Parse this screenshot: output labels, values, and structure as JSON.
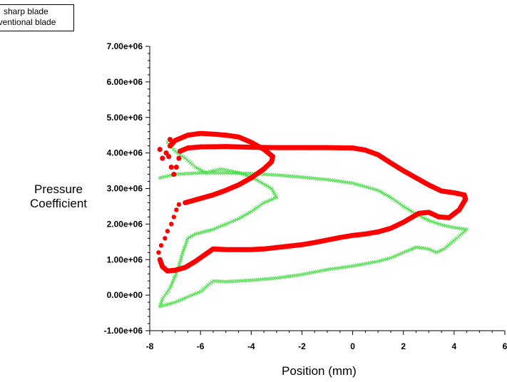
{
  "chart_data": {
    "type": "scatter",
    "title": "",
    "xlabel": "Position (mm)",
    "ylabel_line1": "Pressure",
    "ylabel_line2": "Coefficient",
    "xlim": [
      -8,
      6
    ],
    "ylim": [
      -1000000,
      7000000
    ],
    "x_ticks": [
      -8,
      -6,
      -4,
      -2,
      0,
      2,
      4,
      6
    ],
    "x_tick_labels": [
      "-8",
      "-6",
      "-4",
      "-2",
      "0",
      "2",
      "4",
      "6"
    ],
    "y_ticks": [
      -1000000,
      0,
      1000000,
      2000000,
      3000000,
      4000000,
      5000000,
      6000000,
      7000000
    ],
    "y_tick_labels": [
      "-1.00e+06",
      "0.00e+00",
      "1.00e+06",
      "2.00e+06",
      "3.00e+06",
      "4.00e+06",
      "5.00e+06",
      "6.00e+06",
      "7.00e+06"
    ],
    "grid": false,
    "legend_position": "top-left",
    "legend": [
      "sharp blade",
      "nventional blade"
    ],
    "series": [
      {
        "label_index": 0,
        "color": "#ff0000",
        "marker": "dot",
        "points": [
          [
            -7.6,
            4100000.0
          ],
          [
            -7.5,
            3850000.0
          ],
          [
            -7.35,
            4000000.0
          ],
          [
            -7.2,
            4380000.0
          ],
          [
            -7.25,
            3900000.0
          ],
          [
            -7.15,
            3600000.0
          ],
          [
            -7.05,
            3400000.0
          ],
          [
            -6.95,
            3600000.0
          ],
          [
            -6.85,
            3850000.0
          ],
          [
            -6.8,
            4050000.0
          ],
          [
            -6.5,
            4140000.0
          ],
          [
            -6.0,
            4170000.0
          ],
          [
            -5.0,
            4180000.0
          ],
          [
            -4.0,
            4160000.0
          ],
          [
            -3.0,
            4150000.0
          ],
          [
            -2.0,
            4150000.0
          ],
          [
            -1.0,
            4150000.0
          ],
          [
            0.0,
            4140000.0
          ],
          [
            0.5,
            4080000.0
          ],
          [
            1.0,
            3950000.0
          ],
          [
            1.5,
            3720000.0
          ],
          [
            2.0,
            3500000.0
          ],
          [
            2.5,
            3300000.0
          ],
          [
            3.0,
            3100000.0
          ],
          [
            3.5,
            2930000.0
          ],
          [
            4.0,
            2880000.0
          ],
          [
            4.4,
            2820000.0
          ],
          [
            4.45,
            2700000.0
          ],
          [
            4.2,
            2400000.0
          ],
          [
            3.8,
            2180000.0
          ],
          [
            3.4,
            2200000.0
          ],
          [
            3.0,
            2330000.0
          ],
          [
            2.6,
            2300000.0
          ],
          [
            2.0,
            2050000.0
          ],
          [
            1.5,
            1880000.0
          ],
          [
            1.0,
            1780000.0
          ],
          [
            0.5,
            1720000.0
          ],
          [
            0.0,
            1680000.0
          ],
          [
            -0.5,
            1620000.0
          ],
          [
            -1.0,
            1550000.0
          ],
          [
            -1.5,
            1480000.0
          ],
          [
            -2.0,
            1420000.0
          ],
          [
            -2.5,
            1380000.0
          ],
          [
            -3.0,
            1340000.0
          ],
          [
            -3.5,
            1300000.0
          ],
          [
            -4.0,
            1280000.0
          ],
          [
            -4.5,
            1280000.0
          ],
          [
            -5.0,
            1280000.0
          ],
          [
            -5.5,
            1300000.0
          ],
          [
            -5.8,
            1150000.0
          ],
          [
            -6.2,
            950000.0
          ],
          [
            -6.6,
            780000.0
          ],
          [
            -7.0,
            700000.0
          ],
          [
            -7.3,
            680000.0
          ],
          [
            -7.5,
            800000.0
          ],
          [
            -7.6,
            1000000.0
          ],
          [
            -7.65,
            1200000.0
          ],
          [
            -7.55,
            1400000.0
          ],
          [
            -7.4,
            1600000.0
          ],
          [
            -7.3,
            1800000.0
          ],
          [
            -7.15,
            2000000.0
          ],
          [
            -7.05,
            2200000.0
          ],
          [
            -6.95,
            2400000.0
          ],
          [
            -6.85,
            2550000.0
          ],
          [
            -6.6,
            2600000.0
          ],
          [
            -6.0,
            2720000.0
          ],
          [
            -5.5,
            2820000.0
          ],
          [
            -5.0,
            2950000.0
          ],
          [
            -4.5,
            3100000.0
          ],
          [
            -4.0,
            3300000.0
          ],
          [
            -3.5,
            3550000.0
          ],
          [
            -3.2,
            3750000.0
          ],
          [
            -3.15,
            3900000.0
          ],
          [
            -3.5,
            4100000.0
          ],
          [
            -4.0,
            4300000.0
          ],
          [
            -4.5,
            4450000.0
          ],
          [
            -5.0,
            4500000.0
          ],
          [
            -5.5,
            4530000.0
          ],
          [
            -6.0,
            4550000.0
          ],
          [
            -6.5,
            4500000.0
          ],
          [
            -7.0,
            4350000.0
          ],
          [
            -7.2,
            4200000.0
          ]
        ]
      },
      {
        "label_index": 1,
        "color": "#44dd44",
        "marker": "cross",
        "points": [
          [
            -7.6,
            3300000.0
          ],
          [
            -7.0,
            3400000.0
          ],
          [
            -6.0,
            3440000.0
          ],
          [
            -5.0,
            3440000.0
          ],
          [
            -4.0,
            3420000.0
          ],
          [
            -3.0,
            3380000.0
          ],
          [
            -2.0,
            3320000.0
          ],
          [
            -1.0,
            3250000.0
          ],
          [
            0.0,
            3150000.0
          ],
          [
            1.0,
            2950000.0
          ],
          [
            1.5,
            2750000.0
          ],
          [
            2.0,
            2500000.0
          ],
          [
            2.5,
            2280000.0
          ],
          [
            3.0,
            2100000.0
          ],
          [
            3.5,
            1980000.0
          ],
          [
            4.0,
            1900000.0
          ],
          [
            4.5,
            1850000.0
          ],
          [
            4.1,
            1600000.0
          ],
          [
            3.6,
            1300000.0
          ],
          [
            3.3,
            1200000.0
          ],
          [
            3.0,
            1300000.0
          ],
          [
            2.5,
            1350000.0
          ],
          [
            2.0,
            1200000.0
          ],
          [
            1.5,
            1050000.0
          ],
          [
            1.0,
            950000.0
          ],
          [
            0.0,
            820000.0
          ],
          [
            -1.0,
            720000.0
          ],
          [
            -2.0,
            580000.0
          ],
          [
            -3.0,
            480000.0
          ],
          [
            -4.0,
            420000.0
          ],
          [
            -5.0,
            380000.0
          ],
          [
            -5.5,
            400000.0
          ],
          [
            -6.0,
            100000.0
          ],
          [
            -6.5,
            -50000.0
          ],
          [
            -7.0,
            -200000.0
          ],
          [
            -7.6,
            -320000.0
          ],
          [
            -7.5,
            -100000.0
          ],
          [
            -7.2,
            200000.0
          ],
          [
            -6.9,
            700000.0
          ],
          [
            -6.7,
            1200000.0
          ],
          [
            -6.5,
            1600000.0
          ],
          [
            -6.2,
            1720000.0
          ],
          [
            -5.5,
            1850000.0
          ],
          [
            -5.0,
            2000000.0
          ],
          [
            -4.5,
            2150000.0
          ],
          [
            -4.0,
            2350000.0
          ],
          [
            -3.5,
            2600000.0
          ],
          [
            -3.0,
            2750000.0
          ],
          [
            -3.2,
            3000000.0
          ],
          [
            -3.8,
            3250000.0
          ],
          [
            -4.5,
            3450000.0
          ],
          [
            -5.2,
            3550000.0
          ],
          [
            -5.8,
            3450000.0
          ],
          [
            -6.2,
            3600000.0
          ],
          [
            -6.6,
            3850000.0
          ],
          [
            -7.0,
            4050000.0
          ],
          [
            -7.3,
            4300000.0
          ]
        ]
      }
    ]
  }
}
